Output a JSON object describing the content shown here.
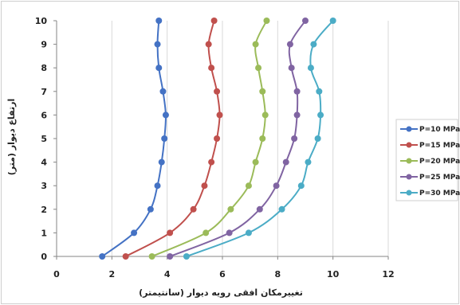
{
  "chart_data": {
    "type": "line",
    "xlabel": "تغییرمکان افقی رویه دیوار (سانتیمتر)",
    "ylabel": "ارتفاع دیوار (متر)",
    "xlim": [
      0,
      12
    ],
    "ylim": [
      0,
      10
    ],
    "x_ticks": [
      0,
      2,
      4,
      6,
      8,
      10,
      12
    ],
    "y_ticks": [
      0,
      1,
      2,
      3,
      4,
      5,
      6,
      7,
      8,
      9,
      10
    ],
    "grid": "vertical",
    "legend_position": "right",
    "series": [
      {
        "name": "P=10 MPa",
        "color": "#4472c4",
        "x": [
          1.65,
          2.8,
          3.4,
          3.65,
          3.8,
          3.9,
          3.95,
          3.85,
          3.7,
          3.65,
          3.7
        ],
        "y": [
          0,
          1,
          2,
          3,
          4,
          5,
          6,
          7,
          8,
          9,
          10
        ]
      },
      {
        "name": "P=15 MPa",
        "color": "#c0504d",
        "x": [
          2.5,
          4.1,
          4.95,
          5.35,
          5.6,
          5.8,
          5.9,
          5.8,
          5.6,
          5.5,
          5.7
        ],
        "y": [
          0,
          1,
          2,
          3,
          4,
          5,
          6,
          7,
          8,
          9,
          10
        ]
      },
      {
        "name": "P=20 MPa",
        "color": "#9bbb59",
        "x": [
          3.45,
          5.4,
          6.3,
          6.95,
          7.2,
          7.45,
          7.55,
          7.45,
          7.3,
          7.2,
          7.6
        ],
        "y": [
          0,
          1,
          2,
          3,
          4,
          5,
          6,
          7,
          8,
          9,
          10
        ]
      },
      {
        "name": "P=25 MPa",
        "color": "#8064a2",
        "x": [
          4.1,
          6.25,
          7.35,
          7.95,
          8.3,
          8.6,
          8.7,
          8.7,
          8.5,
          8.45,
          9.0
        ],
        "y": [
          0,
          1,
          2,
          3,
          4,
          5,
          6,
          7,
          8,
          9,
          10
        ]
      },
      {
        "name": "P=30 MPa",
        "color": "#4bacc6",
        "x": [
          4.7,
          6.95,
          8.15,
          8.85,
          9.1,
          9.45,
          9.55,
          9.5,
          9.2,
          9.3,
          10.0
        ],
        "y": [
          0,
          1,
          2,
          3,
          4,
          5,
          6,
          7,
          8,
          9,
          10
        ]
      }
    ]
  }
}
